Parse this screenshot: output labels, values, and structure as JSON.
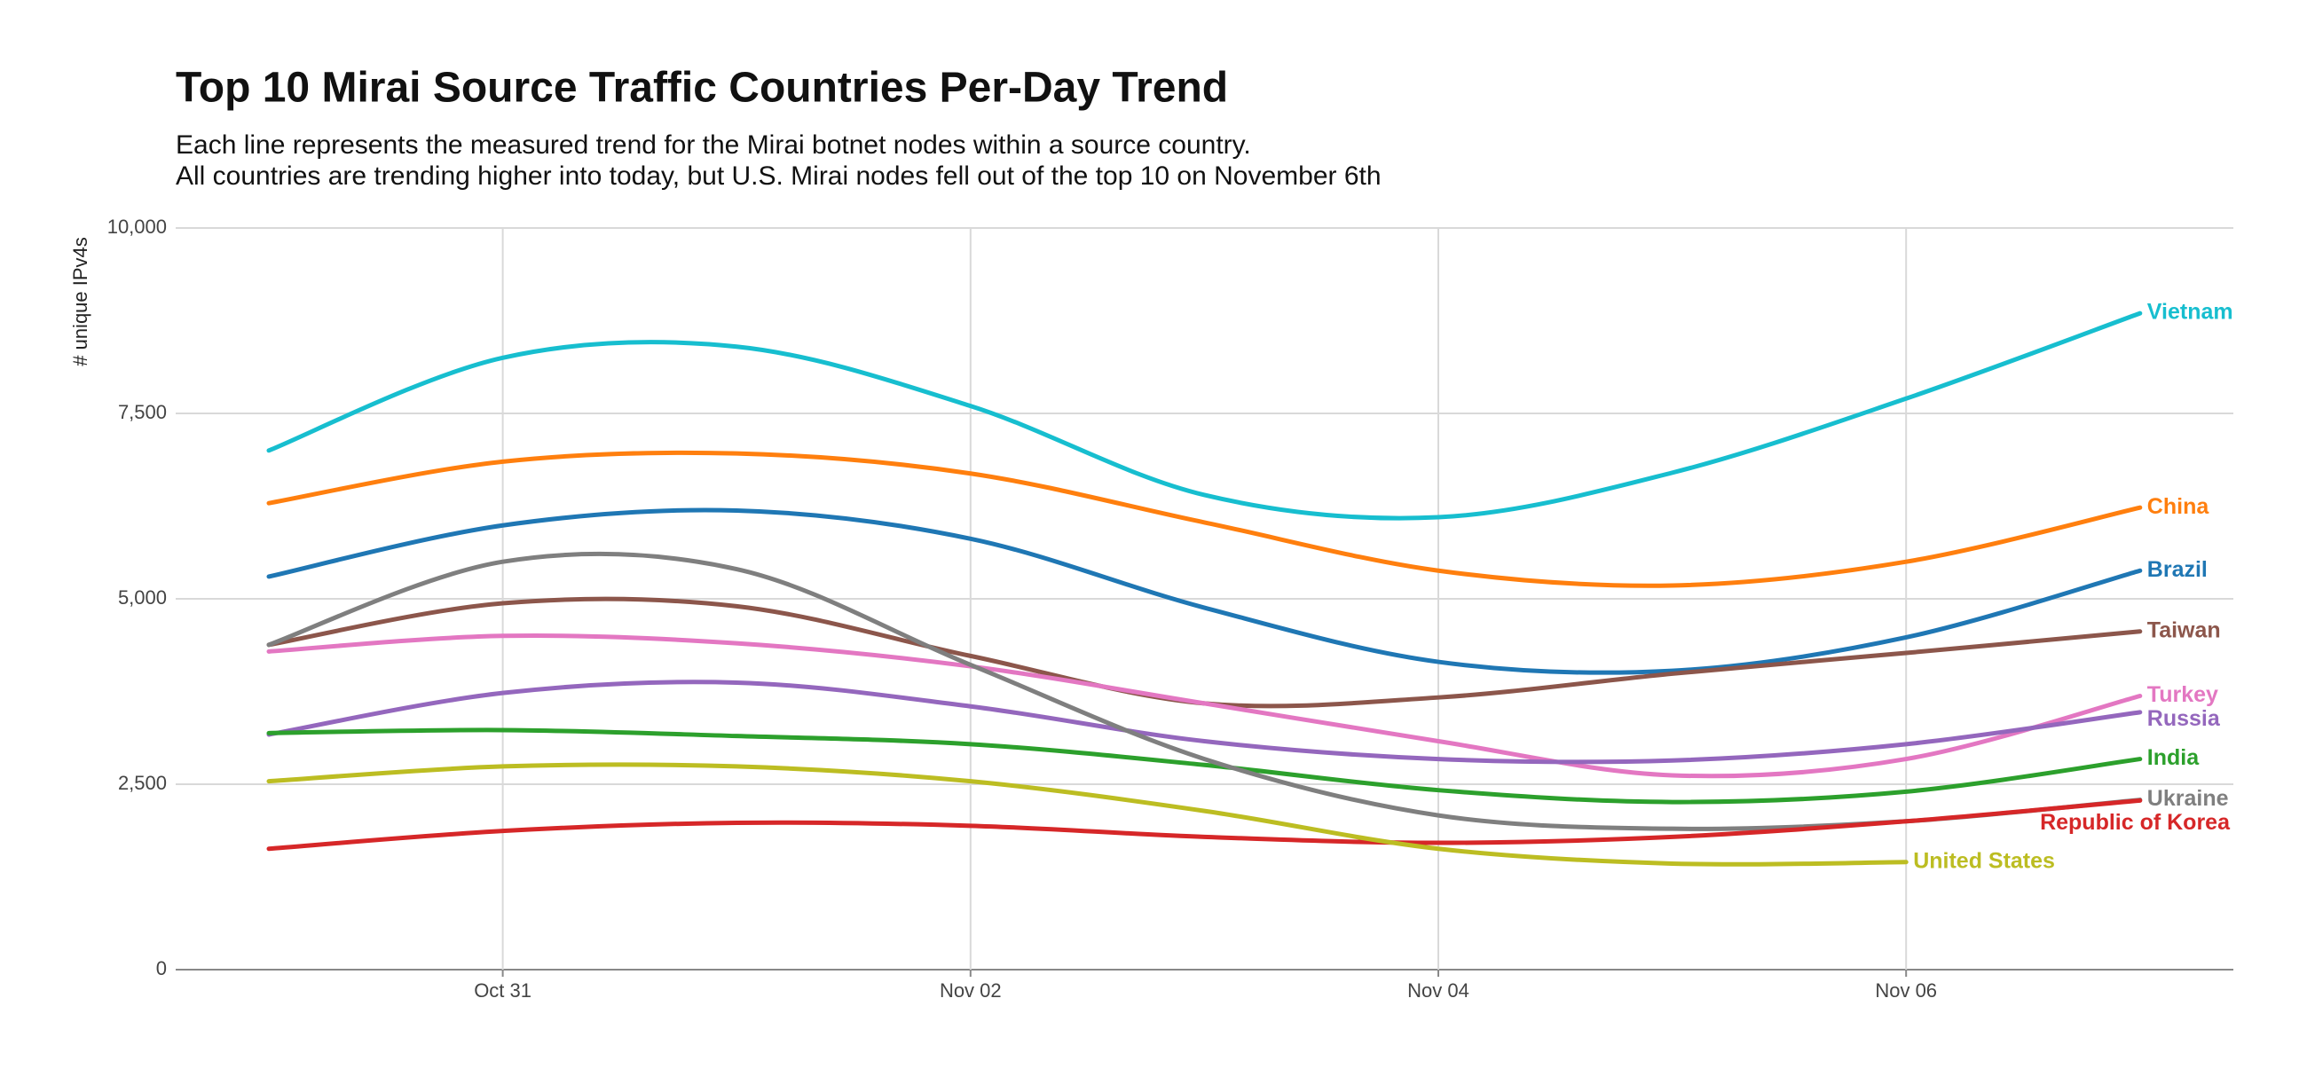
{
  "chart_data": {
    "type": "line",
    "title": "Top 10 Mirai Source Traffic Countries Per-Day Trend",
    "subtitle": [
      "Each line represents the measured trend for the Mirai botnet nodes within a source country.",
      "All countries are trending higher into today, but U.S. Mirai nodes fell out of the top 10 on November 6th"
    ],
    "y_label": "# unique IPv4s",
    "categories": [
      null,
      "Oct 31",
      null,
      "Nov 02",
      null,
      "Nov 04",
      null,
      "Nov 06",
      null
    ],
    "ylim": [
      0,
      10000
    ],
    "yticks": [
      0,
      {
        "value": 2500,
        "label": "2,500"
      },
      {
        "value": 5000,
        "label": "5,000"
      },
      {
        "value": 7500,
        "label": "7,500"
      },
      {
        "value": 10000,
        "label": "10,000"
      }
    ],
    "grid": true,
    "series": [
      {
        "name": "Vietnam",
        "color": "#17becf",
        "values": [
          7000,
          8250,
          8400,
          7600,
          6400,
          6100,
          6700,
          7700,
          8850
        ]
      },
      {
        "name": "China",
        "color": "#ff7f0e",
        "values": [
          6290,
          6850,
          6960,
          6690,
          6030,
          5380,
          5180,
          5500,
          6230
        ]
      },
      {
        "name": "Brazil",
        "color": "#1f77b4",
        "values": [
          5300,
          5990,
          6190,
          5810,
          4880,
          4150,
          4030,
          4480,
          5380
        ]
      },
      {
        "name": "Taiwan",
        "color": "#8c564b",
        "values": [
          4380,
          4940,
          4900,
          4230,
          3590,
          3670,
          3990,
          4270,
          4560
        ]
      },
      {
        "name": "Turkey",
        "color": "#e377c2",
        "values": [
          4290,
          4500,
          4400,
          4090,
          3590,
          3080,
          2620,
          2840,
          3690
        ]
      },
      {
        "name": "Russia",
        "color": "#9467bd",
        "values": [
          3170,
          3730,
          3870,
          3550,
          3080,
          2840,
          2820,
          3040,
          3470
        ]
      },
      {
        "name": "India",
        "color": "#2ca02c",
        "values": [
          3190,
          3230,
          3150,
          3040,
          2760,
          2420,
          2260,
          2400,
          2840
        ]
      },
      {
        "name": "Ukraine",
        "color": "#7f7f7f",
        "values": [
          4380,
          5500,
          5400,
          4110,
          2840,
          2080,
          1900,
          2000,
          2290
        ]
      },
      {
        "name": "Republic of Korea",
        "color": "#d62728",
        "values": [
          1630,
          1870,
          1980,
          1940,
          1790,
          1710,
          1790,
          2000,
          2280
        ]
      },
      {
        "name": "United States",
        "color": "#bcbd22",
        "values": [
          2540,
          2740,
          2740,
          2540,
          2140,
          1630,
          1430,
          1450,
          null
        ]
      }
    ]
  }
}
